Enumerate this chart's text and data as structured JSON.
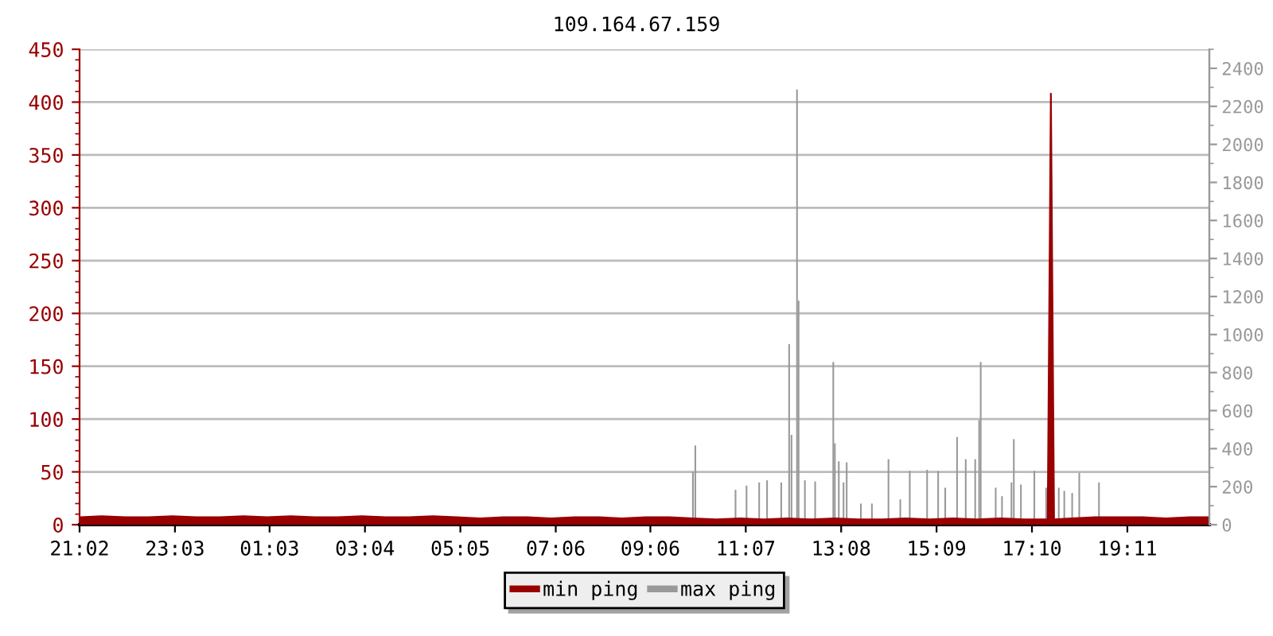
{
  "chart_data": {
    "type": "area",
    "title": "109.164.67.159",
    "xlim": [
      "2000-01-01T21:02",
      "2000-01-02T20:55"
    ],
    "xticks": [
      {
        "value": "2000-01-01T21:02",
        "label": "21:02"
      },
      {
        "value": "2000-01-01T23:03",
        "label": "23:03"
      },
      {
        "value": "2000-01-02T01:03",
        "label": "01:03"
      },
      {
        "value": "2000-01-02T03:04",
        "label": "03:04"
      },
      {
        "value": "2000-01-02T05:05",
        "label": "05:05"
      },
      {
        "value": "2000-01-02T07:06",
        "label": "07:06"
      },
      {
        "value": "2000-01-02T09:06",
        "label": "09:06"
      },
      {
        "value": "2000-01-02T11:07",
        "label": "11:07"
      },
      {
        "value": "2000-01-02T13:08",
        "label": "13:08"
      },
      {
        "value": "2000-01-02T15:09",
        "label": "15:09"
      },
      {
        "value": "2000-01-02T17:10",
        "label": "17:10"
      },
      {
        "value": "2000-01-02T19:11",
        "label": "19:11"
      }
    ],
    "ylim": [
      0,
      450
    ],
    "yticks": [
      0,
      50,
      100,
      150,
      200,
      250,
      300,
      350,
      400,
      450
    ],
    "y2lim": [
      0,
      2500
    ],
    "y2ticks": [
      0,
      200,
      400,
      600,
      800,
      1000,
      1200,
      1400,
      1600,
      1800,
      2000,
      2200,
      2400
    ],
    "grid": "y",
    "legend": "bottom",
    "series": [
      {
        "name": "min ping",
        "color": "#990000",
        "x": [
          "2000-01-01T21:03",
          "2000-01-01T21:30",
          "2000-01-01T22:00",
          "2000-01-01T22:30",
          "2000-01-01T23:00",
          "2000-01-01T23:30",
          "2000-01-02T00:00",
          "2000-01-02T00:30",
          "2000-01-02T01:00",
          "2000-01-02T01:30",
          "2000-01-02T02:00",
          "2000-01-02T02:30",
          "2000-01-02T03:00",
          "2000-01-02T03:30",
          "2000-01-02T04:00",
          "2000-01-02T04:30",
          "2000-01-02T05:00",
          "2000-01-02T05:30",
          "2000-01-02T06:00",
          "2000-01-02T06:30",
          "2000-01-02T07:00",
          "2000-01-02T07:30",
          "2000-01-02T08:00",
          "2000-01-02T08:30",
          "2000-01-02T09:00",
          "2000-01-02T09:30",
          "2000-01-02T10:00",
          "2000-01-02T10:30",
          "2000-01-02T11:00",
          "2000-01-02T11:30",
          "2000-01-02T12:00",
          "2000-01-02T12:30",
          "2000-01-02T13:00",
          "2000-01-02T13:30",
          "2000-01-02T14:00",
          "2000-01-02T14:30",
          "2000-01-02T15:00",
          "2000-01-02T15:30",
          "2000-01-02T16:00",
          "2000-01-02T16:30",
          "2000-01-02T17:00",
          "2000-01-02T17:30",
          "2000-01-02T17:32",
          "2000-01-02T17:34",
          "2000-01-02T17:36",
          "2000-01-02T17:38",
          "2000-01-02T18:00",
          "2000-01-02T18:30",
          "2000-01-02T19:00",
          "2000-01-02T19:30",
          "2000-01-02T20:00",
          "2000-01-02T20:30",
          "2000-01-02T20:54"
        ],
        "values": [
          7,
          8,
          7,
          7,
          8,
          7,
          7,
          8,
          7,
          8,
          7,
          7,
          8,
          7,
          7,
          8,
          7,
          6,
          7,
          7,
          6,
          7,
          7,
          6,
          7,
          7,
          6,
          5,
          6,
          5,
          6,
          5,
          6,
          5,
          5,
          6,
          5,
          6,
          5,
          6,
          5,
          5,
          208,
          408,
          208,
          5,
          6,
          7,
          7,
          7,
          6,
          7,
          7
        ]
      },
      {
        "name": "max ping",
        "type": "bar",
        "color": "#999999",
        "x": [
          "2000-01-02T10:00",
          "2000-01-02T10:03",
          "2000-01-02T10:54",
          "2000-01-02T11:08",
          "2000-01-02T11:24",
          "2000-01-02T11:34",
          "2000-01-02T11:52",
          "2000-01-02T12:02",
          "2000-01-02T12:05",
          "2000-01-02T12:12",
          "2000-01-02T12:14",
          "2000-01-02T12:22",
          "2000-01-02T12:35",
          "2000-01-02T12:58",
          "2000-01-02T13:00",
          "2000-01-02T13:05",
          "2000-01-02T13:11",
          "2000-01-02T13:15",
          "2000-01-02T13:33",
          "2000-01-02T13:47",
          "2000-01-02T14:08",
          "2000-01-02T14:23",
          "2000-01-02T14:35",
          "2000-01-02T14:57",
          "2000-01-02T15:11",
          "2000-01-02T15:20",
          "2000-01-02T15:35",
          "2000-01-02T15:46",
          "2000-01-02T15:58",
          "2000-01-02T16:03",
          "2000-01-02T16:05",
          "2000-01-02T16:24",
          "2000-01-02T16:32",
          "2000-01-02T16:44",
          "2000-01-02T16:47",
          "2000-01-02T16:56",
          "2000-01-02T17:13",
          "2000-01-02T17:28",
          "2000-01-02T17:44",
          "2000-01-02T17:51",
          "2000-01-02T18:01",
          "2000-01-02T18:10",
          "2000-01-02T18:35"
        ],
        "values": [
          50,
          75,
          33,
          37,
          40,
          42,
          40,
          171,
          85,
          412,
          212,
          42,
          41,
          154,
          77,
          60,
          40,
          59,
          20,
          20,
          62,
          24,
          51,
          52,
          51,
          35,
          83,
          62,
          62,
          99,
          154,
          35,
          27,
          40,
          81,
          38,
          51,
          35,
          35,
          32,
          30,
          49,
          40
        ]
      }
    ]
  }
}
